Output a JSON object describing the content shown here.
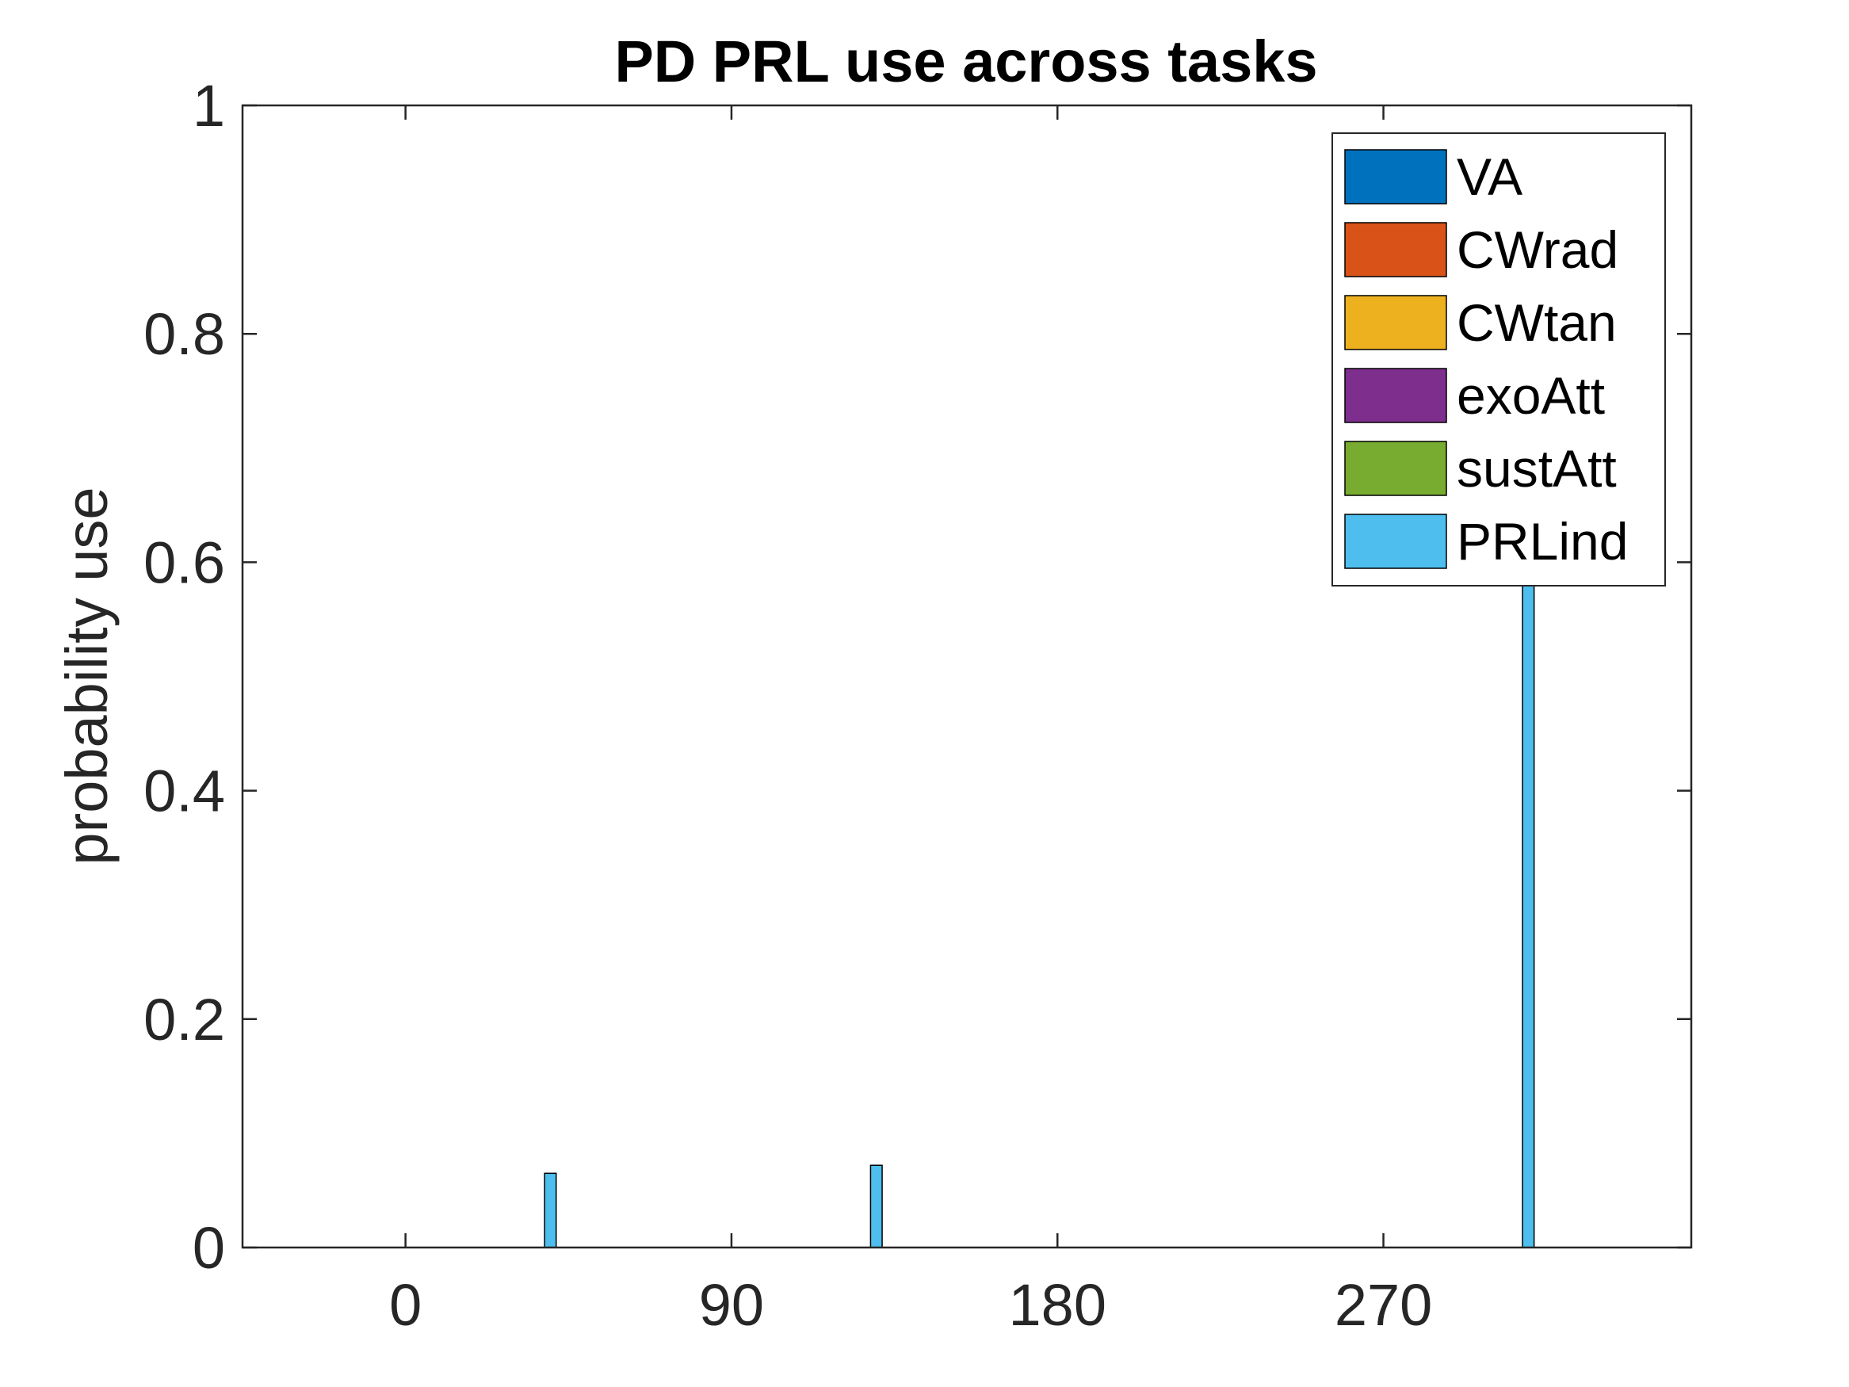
{
  "chart_data": {
    "type": "bar",
    "title": "PD PRL use across tasks",
    "xlabel": "",
    "ylabel": "probability use",
    "xlim": [
      -45,
      355
    ],
    "ylim": [
      0,
      1
    ],
    "x_ticks": [
      0,
      90,
      180,
      270
    ],
    "x_tick_labels": [
      "0",
      "90",
      "180",
      "270"
    ],
    "y_ticks": [
      0,
      0.2,
      0.4,
      0.6,
      0.8,
      1
    ],
    "y_tick_labels": [
      "0",
      "0.2",
      "0.4",
      "0.6",
      "0.8",
      "1"
    ],
    "bin_centers": [
      0,
      30,
      60,
      90,
      120,
      150,
      180,
      210,
      240,
      270,
      300,
      330
    ],
    "grid": false,
    "legend_position": "top-right",
    "series": [
      {
        "name": "VA",
        "color": "#0072BD",
        "values": [
          0,
          0,
          0,
          0,
          0,
          0,
          0,
          0,
          0,
          0,
          0,
          0
        ]
      },
      {
        "name": "CWrad",
        "color": "#D95319",
        "values": [
          0,
          0,
          0,
          0,
          0,
          0,
          0,
          0,
          0,
          0,
          0,
          0
        ]
      },
      {
        "name": "CWtan",
        "color": "#EDB120",
        "values": [
          0,
          0,
          0,
          0,
          0,
          0,
          0,
          0,
          0,
          0,
          0,
          0
        ]
      },
      {
        "name": "exoAtt",
        "color": "#7E2F8E",
        "values": [
          0,
          0,
          0,
          0,
          0,
          0,
          0,
          0,
          0,
          0,
          0,
          0
        ]
      },
      {
        "name": "sustAtt",
        "color": "#77AC30",
        "values": [
          0,
          0,
          0,
          0,
          0,
          0,
          0,
          0,
          0,
          0,
          0,
          0
        ]
      },
      {
        "name": "PRLind",
        "color": "#4DBEEE",
        "values": [
          0,
          0.065,
          0,
          0,
          0.072,
          0,
          0,
          0,
          0,
          0,
          0.87,
          0
        ]
      }
    ]
  }
}
